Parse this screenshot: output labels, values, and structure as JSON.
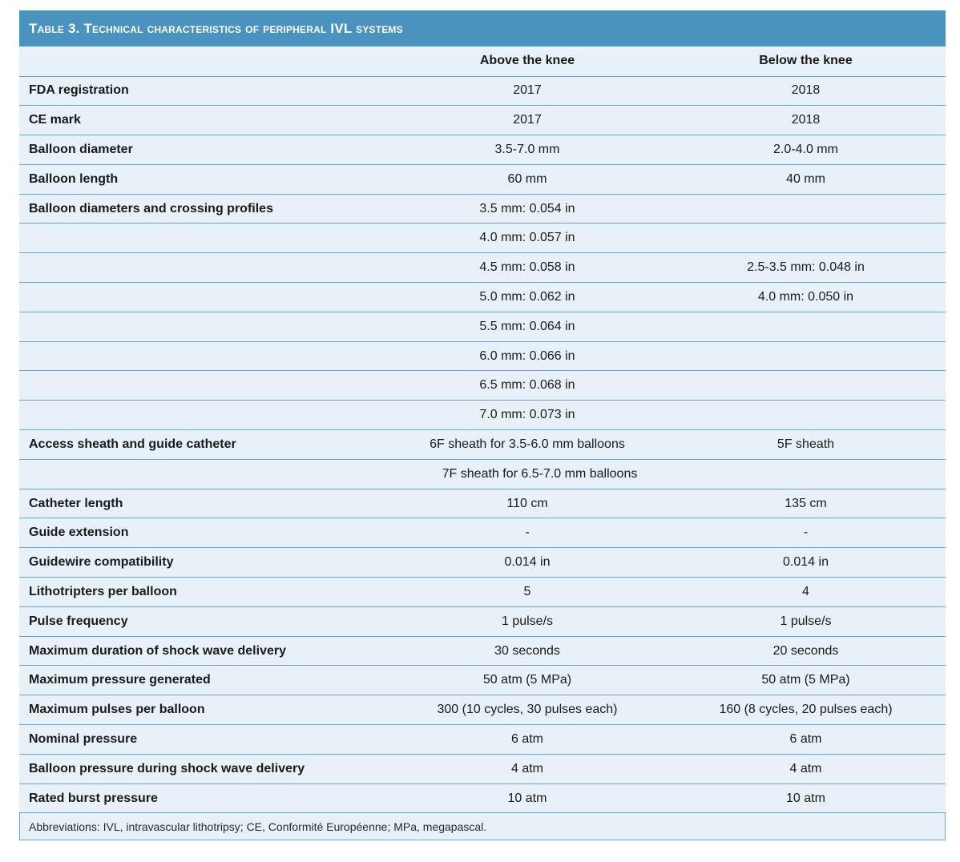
{
  "title": "Table 3. Technical characteristics of peripheral IVL systems",
  "columns": [
    "",
    "Above the knee",
    "Below the knee"
  ],
  "rows": [
    {
      "label": "FDA registration",
      "atk": "2017",
      "btk": "2018"
    },
    {
      "label": "CE mark",
      "atk": "2017",
      "btk": "2018"
    },
    {
      "label": "Balloon diameter",
      "atk": "3.5-7.0 mm",
      "btk": "2.0-4.0 mm"
    },
    {
      "label": "Balloon length",
      "atk": "60 mm",
      "btk": "40 mm"
    },
    {
      "label": "Balloon diameters and crossing profiles",
      "atk": "3.5 mm: 0.054 in",
      "btk": ""
    },
    {
      "label": "",
      "atk": "4.0 mm: 0.057 in",
      "btk": ""
    },
    {
      "label": "",
      "atk": "4.5 mm: 0.058 in",
      "btk": "2.5-3.5 mm: 0.048 in"
    },
    {
      "label": "",
      "atk": "5.0 mm: 0.062 in",
      "btk": "4.0 mm: 0.050 in"
    },
    {
      "label": "",
      "atk": "5.5 mm: 0.064 in",
      "btk": ""
    },
    {
      "label": "",
      "atk": "6.0 mm: 0.066 in",
      "btk": ""
    },
    {
      "label": "",
      "atk": "6.5 mm: 0.068 in",
      "btk": ""
    },
    {
      "label": "",
      "atk": "7.0 mm: 0.073 in",
      "btk": ""
    },
    {
      "label": "Access sheath and guide catheter",
      "atk": "6F sheath for 3.5-6.0 mm balloons",
      "btk": "5F sheath"
    },
    {
      "label": "",
      "atk": "7F sheath for 6.5-7.0 mm balloons",
      "btk": ""
    },
    {
      "label": "Catheter length",
      "atk": "110 cm",
      "btk": "135 cm"
    },
    {
      "label": "Guide extension",
      "atk": "-",
      "btk": "-"
    },
    {
      "label": "Guidewire compatibility",
      "atk": "0.014 in",
      "btk": "0.014 in"
    },
    {
      "label": "Lithotripters per balloon",
      "atk": "5",
      "btk": "4"
    },
    {
      "label": "Pulse frequency",
      "atk": "1 pulse/s",
      "btk": "1 pulse/s"
    },
    {
      "label": "Maximum duration of shock wave delivery",
      "atk": "30 seconds",
      "btk": "20 seconds"
    },
    {
      "label": "Maximum pressure generated",
      "atk": "50 atm (5 MPa)",
      "btk": "50 atm (5 MPa)"
    },
    {
      "label": "Maximum pulses per balloon",
      "atk": "300 (10 cycles, 30 pulses each)",
      "btk": "160 (8 cycles, 20 pulses each)"
    },
    {
      "label": "Nominal pressure",
      "atk": "6 atm",
      "btk": "6 atm"
    },
    {
      "label": "Balloon pressure during shock wave delivery",
      "atk": "4 atm",
      "btk": "4 atm"
    },
    {
      "label": "Rated burst pressure",
      "atk": "10 atm",
      "btk": "10 atm"
    }
  ],
  "footnote": "Abbreviations: IVL, intravascular lithotripsy; CE, Conformité Européenne; MPa, megapascal."
}
